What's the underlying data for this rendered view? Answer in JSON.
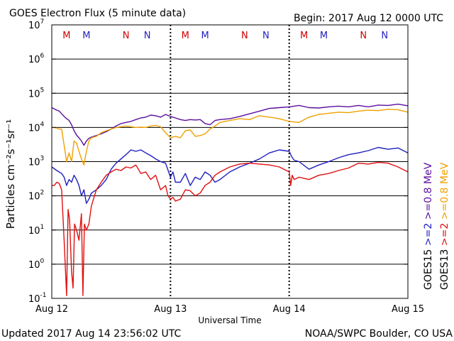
{
  "chart_data": {
    "type": "line",
    "title": "GOES Electron Flux (5 minute data)",
    "begin_label": "Begin: 2017 Aug 12 0000 UTC",
    "xlabel": "Universal Time",
    "ylabel": "Particles cm⁻²s⁻¹sr⁻¹",
    "y_scale": "log",
    "ylim": [
      0.1,
      10000000
    ],
    "xlim": [
      0,
      72
    ],
    "x_tick_labels": [
      "Aug 12",
      "Aug 13",
      "Aug 14",
      "Aug 15"
    ],
    "y_tick_exponents": [
      "-1",
      "0",
      "1",
      "2",
      "3",
      "4",
      "5",
      "6",
      "7"
    ],
    "threshold": 1000,
    "grid": true,
    "markers": [
      {
        "letter": "M",
        "hour": 3,
        "color": "#d00000"
      },
      {
        "letter": "M",
        "hour": 7,
        "color": "#1f1fbf"
      },
      {
        "letter": "N",
        "hour": 15,
        "color": "#d00000"
      },
      {
        "letter": "N",
        "hour": 19.3,
        "color": "#1f1fbf"
      },
      {
        "letter": "M",
        "hour": 27,
        "color": "#d00000"
      },
      {
        "letter": "M",
        "hour": 31,
        "color": "#1f1fbf"
      },
      {
        "letter": "N",
        "hour": 39,
        "color": "#d00000"
      },
      {
        "letter": "N",
        "hour": 43.3,
        "color": "#1f1fbf"
      },
      {
        "letter": "M",
        "hour": 51,
        "color": "#d00000"
      },
      {
        "letter": "M",
        "hour": 55,
        "color": "#1f1fbf"
      },
      {
        "letter": "N",
        "hour": 63,
        "color": "#d00000"
      },
      {
        "letter": "N",
        "hour": 67.3,
        "color": "#1f1fbf"
      }
    ],
    "legend": {
      "placement": "right",
      "satellites": [
        {
          "name": "GOES15",
          "labels": [
            {
              "text": ">=2",
              "color": "#1f1fbf"
            },
            {
              "text": ">=0.8",
              "color": "#5b0f9e"
            }
          ]
        },
        {
          "name": "GOES13",
          "labels": [
            {
              "text": ">=2",
              "color": "#e01010"
            },
            {
              "text": ">=0.8",
              "color": "#f0a000"
            }
          ]
        }
      ],
      "unit": "MeV"
    },
    "series": [
      {
        "name": "GOES15 >=0.8 MeV",
        "color": "#5b0f9e",
        "x": [
          0,
          0.5,
          1,
          1.5,
          2,
          2.5,
          3,
          3.5,
          4,
          4.5,
          5,
          5.5,
          6,
          6.5,
          7,
          7.5,
          8,
          9,
          10,
          11,
          12,
          13,
          14,
          15,
          16,
          17,
          18,
          19,
          20,
          21,
          22,
          23,
          24,
          25,
          26,
          27,
          28,
          29,
          30,
          31,
          32,
          33,
          34,
          36,
          38,
          40,
          42,
          44,
          46,
          48,
          50,
          52,
          54,
          56,
          58,
          60,
          62,
          64,
          66,
          68,
          70,
          72
        ],
        "y": [
          38000,
          35000,
          32000,
          30000,
          25000,
          21000,
          18000,
          16000,
          12000,
          8000,
          6000,
          5000,
          4000,
          3000,
          4000,
          4800,
          5200,
          5800,
          6500,
          7500,
          9000,
          11000,
          13000,
          14000,
          15000,
          17000,
          19000,
          20000,
          23000,
          22000,
          20000,
          24000,
          21000,
          19000,
          17000,
          16000,
          17000,
          16500,
          17000,
          13000,
          12000,
          16000,
          17000,
          18000,
          21000,
          25000,
          30000,
          36000,
          38000,
          40000,
          44000,
          38000,
          37000,
          40000,
          42000,
          40000,
          44000,
          40000,
          45000,
          44000,
          48000,
          43000
        ]
      },
      {
        "name": "GOES13 >=0.8 MeV",
        "color": "#f0a000",
        "x": [
          0,
          0.5,
          1,
          1.5,
          2,
          2.5,
          3,
          3.5,
          4,
          4.5,
          5,
          5.5,
          6,
          6.5,
          7,
          7.5,
          8,
          9,
          10,
          11,
          12,
          13,
          14,
          15,
          16,
          17,
          18,
          19,
          20,
          21,
          22,
          23,
          24,
          25,
          26,
          27,
          28,
          29,
          30,
          31,
          32,
          33,
          34,
          36,
          38,
          40,
          42,
          44,
          46,
          48,
          50,
          52,
          54,
          56,
          58,
          60,
          62,
          64,
          66,
          68,
          70,
          72
        ],
        "y": [
          10000,
          10000,
          9500,
          9000,
          8800,
          3000,
          1000,
          1800,
          1000,
          4000,
          3500,
          2000,
          1200,
          800,
          2000,
          4000,
          5000,
          5500,
          7000,
          8000,
          9000,
          10000,
          10500,
          11000,
          10500,
          10000,
          10200,
          10000,
          11000,
          11500,
          10500,
          7000,
          5000,
          5500,
          5000,
          8000,
          8500,
          5500,
          5800,
          6500,
          9000,
          11000,
          14000,
          16000,
          18000,
          17000,
          22000,
          20000,
          18000,
          15000,
          14000,
          20000,
          24000,
          26000,
          28000,
          27000,
          30000,
          32000,
          31000,
          34000,
          33000,
          28000
        ]
      },
      {
        "name": "GOES15 >=2 MeV",
        "color": "#1f1fbf",
        "x": [
          0,
          1,
          2,
          2.5,
          3,
          3.5,
          4,
          4.5,
          5,
          5.5,
          6,
          6.5,
          7,
          7.5,
          8,
          9,
          10,
          11,
          12,
          13,
          14,
          15,
          16,
          17,
          18,
          19,
          20,
          21,
          22,
          23,
          24,
          24.5,
          25,
          26,
          27,
          28,
          29,
          30,
          31,
          32,
          33,
          34,
          36,
          38,
          40,
          42,
          44,
          46,
          48,
          48.5,
          49,
          50,
          52,
          54,
          56,
          58,
          60,
          62,
          64,
          66,
          68,
          70,
          72
        ],
        "y": [
          700,
          550,
          450,
          350,
          200,
          300,
          250,
          400,
          300,
          200,
          100,
          150,
          60,
          80,
          120,
          150,
          200,
          300,
          600,
          900,
          1200,
          1600,
          2200,
          2000,
          2200,
          1800,
          1500,
          1200,
          1000,
          900,
          350,
          500,
          250,
          250,
          450,
          200,
          350,
          300,
          500,
          400,
          250,
          300,
          500,
          700,
          900,
          1200,
          1800,
          2200,
          2000,
          1400,
          1100,
          1000,
          600,
          800,
          1000,
          1300,
          1600,
          1800,
          2100,
          2600,
          2300,
          2500,
          1800
        ]
      },
      {
        "name": "GOES13 >=2 MeV",
        "color": "#e01010",
        "x": [
          0,
          0.5,
          1,
          1.5,
          2,
          2.5,
          3,
          3.3,
          3.6,
          4,
          4.3,
          4.6,
          5,
          5.5,
          6,
          6.3,
          6.6,
          7,
          7.5,
          8,
          9,
          10,
          11,
          12,
          13,
          14,
          15,
          16,
          17,
          18,
          19,
          20,
          21,
          22,
          23,
          23.5,
          24,
          24.5,
          25,
          26,
          27,
          28,
          29,
          30,
          31,
          32,
          33,
          34,
          36,
          38,
          40,
          42,
          44,
          46,
          48,
          48.3,
          48.6,
          49,
          50,
          52,
          54,
          56,
          58,
          60,
          62,
          64,
          66,
          68,
          70,
          72
        ],
        "y": [
          200,
          200,
          250,
          230,
          150,
          5,
          0.12,
          40,
          20,
          0.6,
          0.2,
          15,
          10,
          5,
          30,
          0.12,
          15,
          10,
          15,
          50,
          150,
          250,
          400,
          500,
          600,
          550,
          700,
          650,
          800,
          450,
          500,
          300,
          400,
          150,
          200,
          100,
          80,
          90,
          70,
          80,
          150,
          140,
          100,
          120,
          200,
          250,
          400,
          500,
          700,
          850,
          900,
          850,
          800,
          700,
          500,
          200,
          400,
          300,
          350,
          300,
          400,
          450,
          550,
          650,
          900,
          850,
          950,
          900,
          700,
          500
        ]
      }
    ]
  },
  "footer": {
    "updated": "Updated 2017 Aug 14 23:56:02 UTC",
    "credit": "NOAA/SWPC Boulder, CO USA"
  }
}
